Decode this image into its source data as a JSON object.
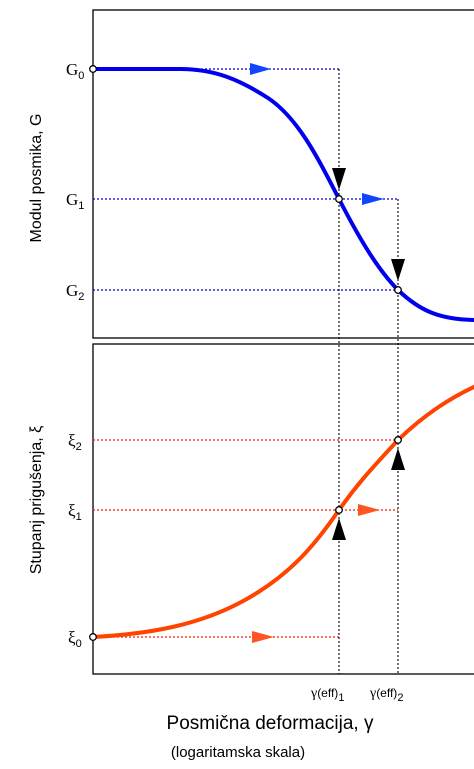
{
  "top_panel": {
    "ylabel": "Modul posmika, G",
    "levels": [
      {
        "sym": "G",
        "sub": "0"
      },
      {
        "sym": "G",
        "sub": "1"
      },
      {
        "sym": "G",
        "sub": "2"
      }
    ],
    "curve_color": "#0000ee",
    "guide_color": "#0000cc"
  },
  "bottom_panel": {
    "ylabel": "Stupanj prigušenja, ξ",
    "levels": [
      {
        "sym": "ξ",
        "sub": "2"
      },
      {
        "sym": "ξ",
        "sub": "1"
      },
      {
        "sym": "ξ",
        "sub": "0"
      }
    ],
    "curve_color": "#ff4400",
    "guide_color": "#ee2200"
  },
  "x_axis": {
    "label": "Posmična deformacija, γ",
    "note": "(logaritamska skala)",
    "ticks": [
      {
        "sym": "γ",
        "paren": "(eff)",
        "sub": "1"
      },
      {
        "sym": "γ",
        "paren": "(eff)",
        "sub": "2"
      }
    ]
  }
}
